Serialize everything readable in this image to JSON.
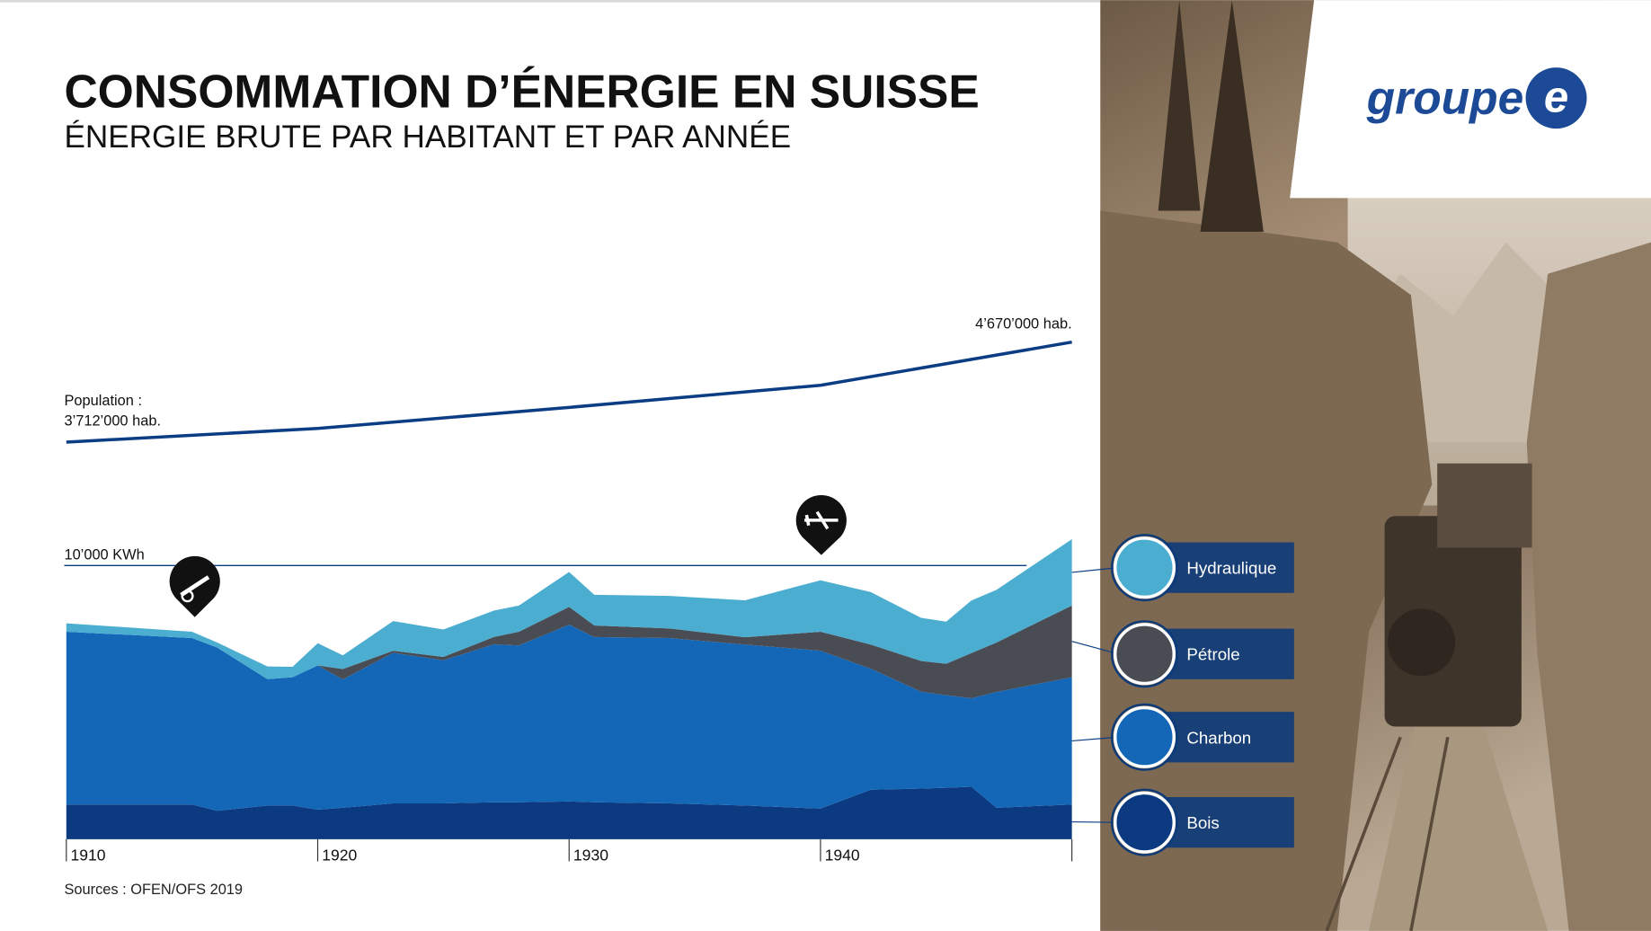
{
  "chart_data": {
    "type": "stacked-area",
    "title": "CONSOMMATION D’ÉNERGIE EN SUISSE",
    "subtitle": "ÉNERGIE BRUTE PAR HABITANT ET PAR ANNÉE",
    "source": "Sources : OFEN/OFS 2019",
    "logo": {
      "word": "groupe",
      "letter": "e"
    },
    "x": [
      1910,
      1915,
      1916,
      1918,
      1919,
      1920,
      1921,
      1923,
      1925,
      1927,
      1928,
      1930,
      1931,
      1934,
      1937,
      1940,
      1942,
      1944,
      1945,
      1946,
      1947,
      1950
    ],
    "xlim": [
      1910,
      1950
    ],
    "xticks": [
      1910,
      1920,
      1930,
      1940
    ],
    "ylim": [
      0,
      19000
    ],
    "yticks": [
      {
        "value": 10000,
        "label": "10’000 KWh"
      }
    ],
    "series": [
      {
        "name": "Bois",
        "color": "#0b3a80",
        "values": [
          1270,
          1270,
          1040,
          1230,
          1230,
          1080,
          1150,
          1310,
          1310,
          1350,
          1350,
          1380,
          1350,
          1310,
          1230,
          1120,
          1810,
          1850,
          1880,
          1920,
          1150,
          1270
        ]
      },
      {
        "name": "Charbon",
        "color": "#1467b7",
        "values": [
          6310,
          6080,
          5960,
          4620,
          4690,
          5270,
          4690,
          5500,
          5230,
          5770,
          5730,
          6460,
          6040,
          6040,
          5880,
          5770,
          4420,
          3540,
          3380,
          3230,
          4230,
          4650
        ]
      },
      {
        "name": "Pétrole",
        "color": "#4a4c54",
        "values": [
          0,
          0,
          0,
          0,
          0,
          0,
          380,
          80,
          120,
          270,
          500,
          650,
          420,
          350,
          270,
          690,
          880,
          1120,
          1150,
          1650,
          1810,
          2620
        ]
      },
      {
        "name": "Hydraulique",
        "color": "#4badd0",
        "values": [
          310,
          230,
          190,
          460,
          380,
          810,
          500,
          1080,
          1000,
          960,
          960,
          1270,
          1120,
          1190,
          1350,
          1880,
          1920,
          1580,
          1540,
          1920,
          1920,
          2420
        ]
      }
    ],
    "population": {
      "name": "Population :",
      "color": "#0b3d85",
      "axis": "y2",
      "x": [
        1910,
        1920,
        1930,
        1940,
        1950
      ],
      "values": [
        3712000,
        3843000,
        4045000,
        4257000,
        4670000
      ],
      "value_labels": [
        "3’712’000 hab.",
        null,
        null,
        null,
        "4’670’000 hab."
      ]
    },
    "y2lim": [
      2500000,
      4920000
    ]
  }
}
